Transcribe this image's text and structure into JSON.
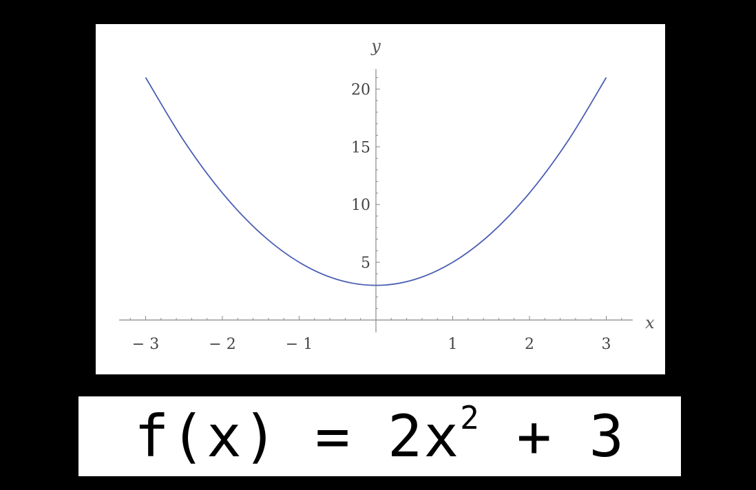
{
  "chart_data": {
    "type": "line",
    "title": "",
    "xlabel": "x",
    "ylabel": "y",
    "xlim": [
      -3.3,
      3.3
    ],
    "ylim": [
      -0.5,
      21.5
    ],
    "x_ticks": [
      -3,
      -2,
      -1,
      1,
      2,
      3
    ],
    "x_tick_labels": [
      "− 3",
      "− 2",
      "− 1",
      "1",
      "2",
      "3"
    ],
    "y_ticks": [
      5,
      10,
      15,
      20
    ],
    "y_tick_labels": [
      "5",
      "10",
      "15",
      "20"
    ],
    "grid": false,
    "series": [
      {
        "color": "#4a5db3",
        "x": [
          -3,
          -2.5,
          -2,
          -1.5,
          -1,
          -0.5,
          0,
          0.5,
          1,
          1.5,
          2,
          2.5,
          3
        ],
        "y": [
          21,
          15.5,
          11,
          7.5,
          5,
          3.5,
          3,
          3.5,
          5,
          7.5,
          11,
          15.5,
          21
        ]
      }
    ]
  },
  "formula": {
    "prefix": "f(x) = 2x",
    "exponent": "2",
    "suffix": " + 3"
  }
}
